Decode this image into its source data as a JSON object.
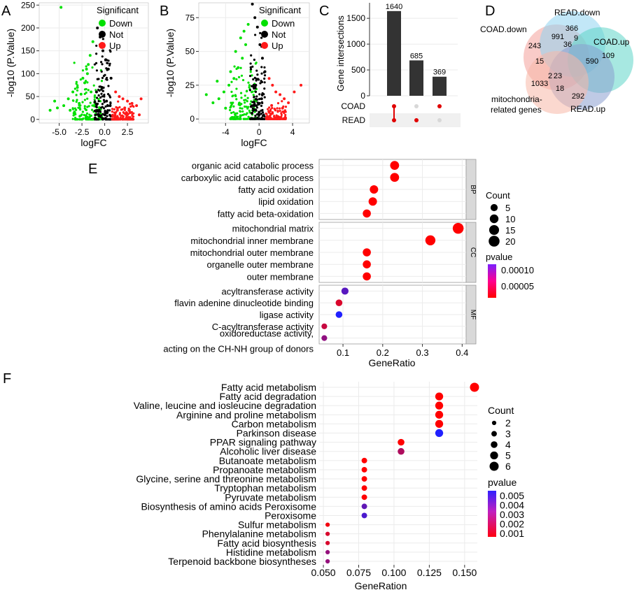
{
  "colors": {
    "down": "#00e000",
    "not": "#000000",
    "up": "#ff1a1a",
    "bar": "#333333",
    "grid": "#ebebeb",
    "strip": "#d9d9d9",
    "pv_high": "#2020ff",
    "pv_low": "#ff0000"
  },
  "chart_data": [
    {
      "panel": "A",
      "type": "scatter",
      "subtitle": "Volcano plot",
      "xlabel": "logFC",
      "ylabel": "-log10 (P.Value)",
      "xlim": [
        -7.2,
        4.8
      ],
      "ylim": [
        -8,
        255
      ],
      "xticks": [
        -5.0,
        -2.5,
        0.0,
        2.5
      ],
      "xtick_labels": [
        "-5.0",
        "-2.5",
        "0.0",
        "2.5"
      ],
      "yticks": [
        0,
        50,
        100,
        150,
        200,
        250
      ],
      "ytick_labels": [
        "0",
        "50",
        "100",
        "150",
        "200",
        "250"
      ],
      "legend": {
        "title": "Significant",
        "position": "top-right",
        "entries": [
          "Down",
          "Not",
          "Up"
        ]
      },
      "series": [
        {
          "name": "Down",
          "x": [
            -1.3,
            -1.6,
            -2.0,
            -2.4,
            -3.0,
            -3.5,
            -4.0,
            -4.5,
            -5.2,
            -6.0,
            -1.5,
            -2.2,
            -2.8,
            -3.3,
            -1.8,
            -4.8,
            -5.5,
            -2.6,
            -1.9,
            -3.8
          ],
          "y": [
            170,
            140,
            110,
            90,
            70,
            60,
            45,
            30,
            25,
            20,
            60,
            80,
            35,
            15,
            120,
            245,
            40,
            55,
            100,
            20
          ]
        },
        {
          "name": "Not",
          "x": [
            -0.8,
            -0.5,
            -0.2,
            0.1,
            0.4,
            0.7,
            -0.9,
            -0.3,
            0.2,
            0.6,
            -0.6,
            0.0
          ],
          "y": [
            200,
            180,
            150,
            130,
            110,
            90,
            60,
            70,
            40,
            30,
            20,
            10
          ]
        },
        {
          "name": "Up",
          "x": [
            1.2,
            1.6,
            2.0,
            2.5,
            3.0,
            3.5,
            4.0,
            1.4,
            2.2,
            2.8,
            3.8
          ],
          "y": [
            60,
            50,
            45,
            40,
            35,
            30,
            45,
            20,
            25,
            15,
            10
          ]
        }
      ]
    },
    {
      "panel": "B",
      "type": "scatter",
      "subtitle": "Volcano plot",
      "xlabel": "logFC",
      "ylabel": "-log10 (P.Value)",
      "xlim": [
        -7.2,
        6
      ],
      "ylim": [
        -3,
        86
      ],
      "xticks": [
        -4,
        0,
        4
      ],
      "xtick_labels": [
        "-4",
        "0",
        "4"
      ],
      "yticks": [
        0,
        25,
        50,
        75
      ],
      "ytick_labels": [
        "0",
        "25",
        "50",
        "75"
      ],
      "legend": {
        "title": "Significant",
        "position": "top-right",
        "entries": [
          "Down",
          "Not",
          "Up"
        ]
      },
      "series": [
        {
          "name": "Down",
          "x": [
            -1.3,
            -1.6,
            -2.0,
            -2.5,
            -3.0,
            -3.6,
            -4.2,
            -4.8,
            -5.5,
            -6.3,
            -2.2,
            -2.8,
            -1.8,
            -3.4,
            -4.0,
            -5.0
          ],
          "y": [
            70,
            55,
            45,
            38,
            30,
            25,
            20,
            15,
            12,
            18,
            60,
            50,
            65,
            35,
            8,
            28
          ]
        },
        {
          "name": "Not",
          "x": [
            -0.8,
            -0.5,
            -0.2,
            0.1,
            0.4,
            0.7,
            -0.4,
            0.3,
            -0.7,
            0.0
          ],
          "y": [
            85,
            75,
            68,
            55,
            45,
            35,
            25,
            15,
            10,
            5
          ]
        },
        {
          "name": "Up",
          "x": [
            1.2,
            1.6,
            2.0,
            2.5,
            3.0,
            3.5,
            4.2,
            5.0,
            1.5,
            2.8
          ],
          "y": [
            30,
            25,
            20,
            18,
            15,
            12,
            20,
            25,
            10,
            8
          ]
        }
      ]
    },
    {
      "panel": "C",
      "type": "bar",
      "subtitle": "UpSet plot",
      "ylabel": "Gene intersections",
      "ylim": [
        0,
        1800
      ],
      "yticks": [
        0,
        500,
        1000,
        1500
      ],
      "ytick_labels": [
        "0",
        "500",
        "1000",
        "1500"
      ],
      "values": [
        1640,
        685,
        369
      ],
      "value_labels": [
        "1640",
        "685",
        "369"
      ],
      "sets": [
        "COAD",
        "READ"
      ],
      "membership": [
        [
          true,
          true
        ],
        [
          false,
          true
        ],
        [
          true,
          false
        ]
      ]
    },
    {
      "panel": "D",
      "type": "venn",
      "subtitle": "Venn diagram",
      "set_labels": [
        "COAD.down",
        "READ.down",
        "COAD.up",
        "READ.up",
        "mitochondria-",
        "related genes"
      ],
      "region_values": [
        "366",
        "991",
        "9",
        "36",
        "243",
        "109",
        "15",
        "2",
        "23",
        "590",
        "1033",
        "18",
        "292"
      ]
    },
    {
      "panel": "E",
      "type": "scatter",
      "subtitle": "GO enrichment",
      "xlabel": "GeneRatio",
      "xlim": [
        0.04,
        0.41
      ],
      "xticks": [
        0.1,
        0.2,
        0.3,
        0.4
      ],
      "xtick_labels": [
        "0.1",
        "0.2",
        "0.3",
        "0.4"
      ],
      "facets": [
        {
          "name": "BP",
          "terms": [
            {
              "label": "organic acid catabolic process",
              "ratio": 0.23,
              "count": 11,
              "pvalue": 1e-05
            },
            {
              "label": "carboxylic acid catabolic process",
              "ratio": 0.23,
              "count": 11,
              "pvalue": 1e-05
            },
            {
              "label": "fatty acid oxidation",
              "ratio": 0.178,
              "count": 9,
              "pvalue": 1e-05
            },
            {
              "label": "lipid oxidation",
              "ratio": 0.175,
              "count": 9,
              "pvalue": 1e-05
            },
            {
              "label": "fatty acid beta-oxidation",
              "ratio": 0.16,
              "count": 8,
              "pvalue": 1e-05
            }
          ]
        },
        {
          "name": "CC",
          "terms": [
            {
              "label": "mitochondrial matrix",
              "ratio": 0.39,
              "count": 20,
              "pvalue": 1e-05
            },
            {
              "label": "mitochondrial inner membrane",
              "ratio": 0.32,
              "count": 16,
              "pvalue": 1e-05
            },
            {
              "label": "mitochondrial outer membrane",
              "ratio": 0.16,
              "count": 8,
              "pvalue": 1e-05
            },
            {
              "label": "organelle outer membrane",
              "ratio": 0.16,
              "count": 8,
              "pvalue": 1e-05
            },
            {
              "label": "outer membrane",
              "ratio": 0.16,
              "count": 8,
              "pvalue": 1e-05
            }
          ]
        },
        {
          "name": "MF",
          "terms": [
            {
              "label": "acyltransferase activity",
              "ratio": 0.105,
              "count": 5,
              "pvalue": 0.0001
            },
            {
              "label": "flavin adenine dinucleotide binding",
              "ratio": 0.09,
              "count": 4,
              "pvalue": 3e-05
            },
            {
              "label": "ligase activity",
              "ratio": 0.09,
              "count": 4,
              "pvalue": 0.00013
            },
            {
              "label": "C-acyltransferase activity",
              "ratio": 0.053,
              "count": 2,
              "pvalue": 4e-05
            },
            {
              "label": "oxidoreductase activity,",
              "label2": "acting on the CH-NH group of donors",
              "ratio": 0.053,
              "count": 2,
              "pvalue": 7e-05
            }
          ]
        }
      ],
      "count_legend": {
        "title": "Count",
        "levels": [
          "5",
          "10",
          "15",
          "20"
        ]
      },
      "pvalue_legend": {
        "title": "pvalue",
        "levels": [
          "0.00010",
          "0.00005"
        ],
        "range": [
          1e-05,
          0.00013
        ]
      }
    },
    {
      "panel": "F",
      "type": "scatter",
      "subtitle": "KEGG enrichment",
      "xlabel": "GeneRation",
      "xlim": [
        0.047,
        0.159
      ],
      "xticks": [
        0.05,
        0.075,
        0.1,
        0.125,
        0.15
      ],
      "xtick_labels": [
        "0.050",
        "0.075",
        "0.100",
        "0.125",
        "0.150"
      ],
      "terms": [
        {
          "label": "Fatty acid metabolism",
          "ratio": 0.157,
          "count": 6,
          "pvalue": 0.0003
        },
        {
          "label": "Fatty acid degradation",
          "ratio": 0.132,
          "count": 5,
          "pvalue": 0.0003
        },
        {
          "label": "Valine, leucine and iosleucine degradation",
          "ratio": 0.132,
          "count": 5,
          "pvalue": 0.0003
        },
        {
          "label": "Arginine and proline metabolism",
          "ratio": 0.132,
          "count": 5,
          "pvalue": 0.0003
        },
        {
          "label": "Carbon metabolism",
          "ratio": 0.132,
          "count": 5,
          "pvalue": 0.0003
        },
        {
          "label": "Parkinson disease",
          "ratio": 0.132,
          "count": 5,
          "pvalue": 0.0055
        },
        {
          "label": "PPAR signaling pathway",
          "ratio": 0.105,
          "count": 4,
          "pvalue": 0.0003
        },
        {
          "label": "Alcoholic liver disease",
          "ratio": 0.105,
          "count": 4,
          "pvalue": 0.0022
        },
        {
          "label": "Butanoate metabolism",
          "ratio": 0.079,
          "count": 3,
          "pvalue": 0.0003
        },
        {
          "label": "Propanoate metabolism",
          "ratio": 0.079,
          "count": 3,
          "pvalue": 0.0003
        },
        {
          "label": "Glycine, serine and threonine metabolism",
          "ratio": 0.079,
          "count": 3,
          "pvalue": 0.0003
        },
        {
          "label": "Tryptophan metabolism",
          "ratio": 0.079,
          "count": 3,
          "pvalue": 0.0003
        },
        {
          "label": "Pyruvate metabolism",
          "ratio": 0.079,
          "count": 3,
          "pvalue": 0.0003
        },
        {
          "label": "Biosynthesis of amino acids Peroxisome",
          "ratio": 0.079,
          "count": 3,
          "pvalue": 0.004
        },
        {
          "label": "Peroxisome",
          "ratio": 0.079,
          "count": 3,
          "pvalue": 0.0045
        },
        {
          "label": "Sulfur metabolism",
          "ratio": 0.053,
          "count": 2,
          "pvalue": 0.0006
        },
        {
          "label": "Phenylalanine metabolism",
          "ratio": 0.053,
          "count": 2,
          "pvalue": 0.0012
        },
        {
          "label": "Fatty acid biosynthesis",
          "ratio": 0.053,
          "count": 2,
          "pvalue": 0.0012
        },
        {
          "label": "Histidine metabolism",
          "ratio": 0.053,
          "count": 2,
          "pvalue": 0.0028
        },
        {
          "label": "Terpenoid backbone biosyntheses",
          "ratio": 0.053,
          "count": 2,
          "pvalue": 0.0028
        }
      ],
      "count_legend": {
        "title": "Count",
        "levels": [
          "2",
          "3",
          "4",
          "5",
          "6"
        ]
      },
      "pvalue_legend": {
        "title": "pvalue",
        "levels": [
          "0.005",
          "0.004",
          "0.003",
          "0.002",
          "0.001"
        ],
        "range": [
          0.0003,
          0.0055
        ]
      }
    }
  ]
}
